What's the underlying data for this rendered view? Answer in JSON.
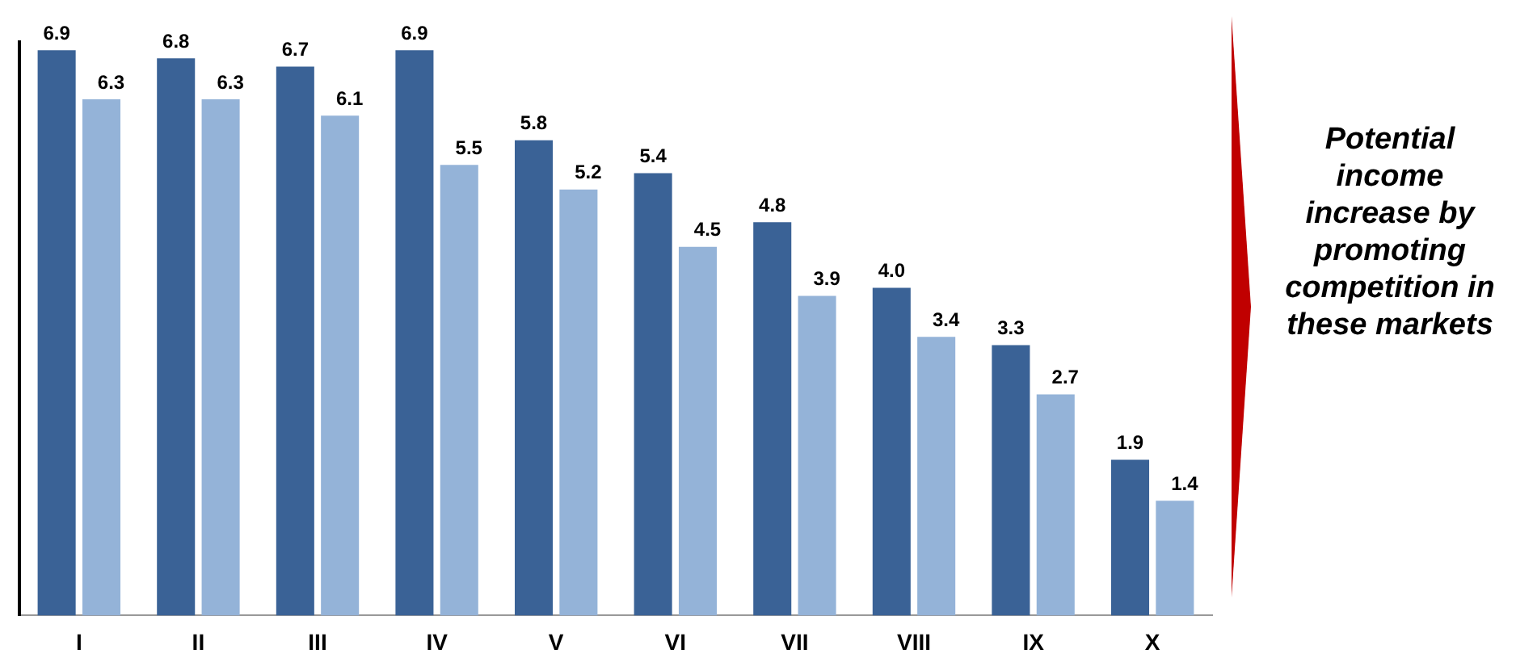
{
  "chart_data": {
    "type": "bar",
    "categories": [
      "I",
      "II",
      "III",
      "IV",
      "V",
      "VI",
      "VII",
      "VIII",
      "IX",
      "X"
    ],
    "series": [
      {
        "color": "#3a6296",
        "values": [
          6.9,
          6.8,
          6.7,
          6.9,
          5.8,
          5.4,
          4.8,
          4.0,
          3.3,
          1.9
        ],
        "value_labels": [
          "6.9",
          "6.8",
          "6.7",
          "6.9",
          "5.8",
          "5.4",
          "4.8",
          "4.0",
          "3.3",
          "1.9"
        ]
      },
      {
        "color": "#94b3d8",
        "values": [
          6.3,
          6.3,
          6.1,
          5.5,
          5.2,
          4.5,
          3.9,
          3.4,
          2.7,
          1.4
        ],
        "value_labels": [
          "6.3",
          "6.3",
          "6.1",
          "5.5",
          "5.2",
          "4.5",
          "3.9",
          "3.4",
          "2.7",
          "1.4"
        ]
      }
    ],
    "grid": false,
    "legend": false,
    "tick_labels": "x",
    "annotations": [
      "Potential income increase by promoting competition in these markets"
    ]
  }
}
